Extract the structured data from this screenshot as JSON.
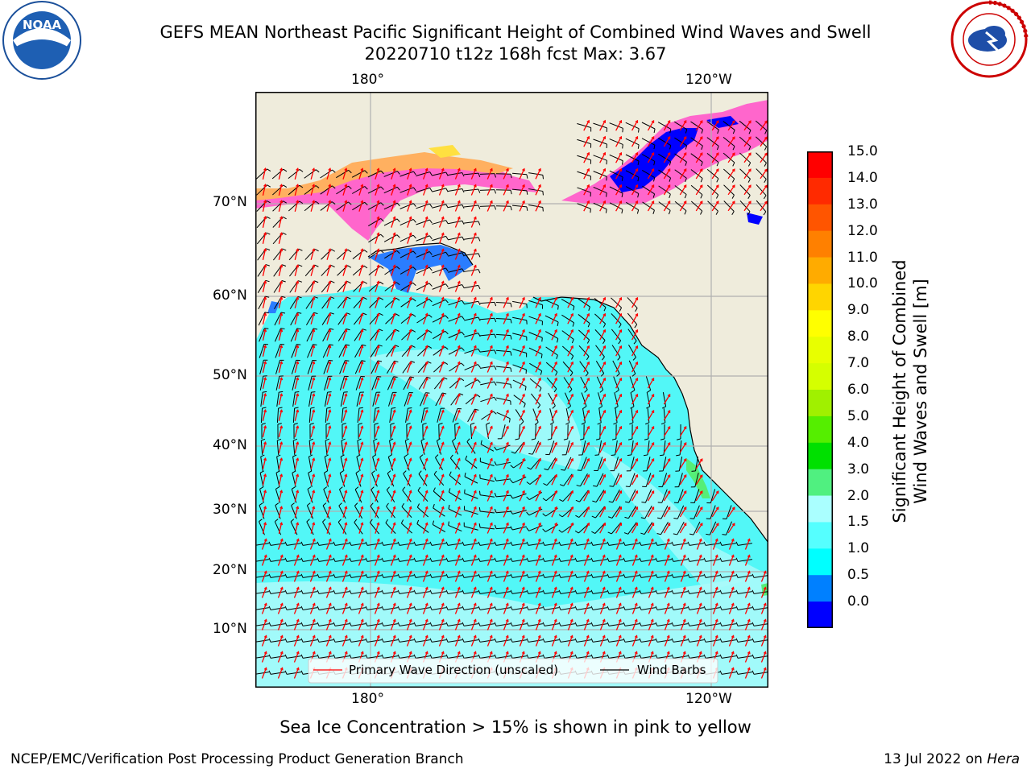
{
  "title": {
    "line1": "GEFS MEAN Northeast Pacific Significant Height of Combined Wind Waves and Swell",
    "line2": "20220710 t12z 168h fcst   Max: 3.67"
  },
  "logos": {
    "left": {
      "name": "NOAA",
      "ring_text": "NATIONAL OCEANIC AND ATMOSPHERIC ADMINISTRATION · U.S. DEPARTMENT OF COMMERCE"
    },
    "right": {
      "name": "NATIONAL WEATHER SERVICE"
    }
  },
  "map": {
    "lon_ticks_top": [
      "180°",
      "120°W"
    ],
    "lon_ticks_bottom": [
      "180°",
      "120°W"
    ],
    "lat_ticks": [
      "70°N",
      "60°N",
      "50°N",
      "40°N",
      "30°N",
      "20°N",
      "10°N"
    ],
    "colors": {
      "land": "#efecdc",
      "ocean_main": "#52f7f7",
      "ocean_light": "#aafafa",
      "ice_pink": "#ff66cc",
      "ice_orange": "#ffb060",
      "ice_yellow": "#ffe040",
      "blue": "#0055ff",
      "deep_blue": "#0000ff",
      "green": "#55ee77",
      "grid": "#b0b0b0",
      "wave_arrow": "#ff0000",
      "wind_barb": "#000000"
    },
    "legend": [
      {
        "label": "Primary Wave Direction (unscaled)",
        "color": "#ff0000"
      },
      {
        "label": "Wind Barbs",
        "color": "#000000"
      }
    ]
  },
  "colorbar": {
    "title_line1": "Significant Height of Combined",
    "title_line2": "Wind Waves and Swell [m]",
    "labels": [
      "15.0",
      "14.0",
      "13.0",
      "12.0",
      "11.0",
      "10.0",
      "9.0",
      "8.0",
      "7.0",
      "6.0",
      "5.0",
      "4.0",
      "3.0",
      "2.0",
      "1.5",
      "1.0",
      "0.5",
      "0.0"
    ],
    "colors_top_to_bottom": [
      "#ff0000",
      "#ff2a00",
      "#ff5500",
      "#ff8000",
      "#ffab00",
      "#ffd500",
      "#ffff00",
      "#e8ff00",
      "#d5ff00",
      "#a0f000",
      "#55ee00",
      "#00e000",
      "#50f080",
      "#aaffff",
      "#55ffff",
      "#00ffff",
      "#0080ff",
      "#0000ff"
    ]
  },
  "caption": "Sea Ice Concentration > 15% is shown in pink to yellow",
  "footer": {
    "left": "NCEP/EMC/Verification Post Processing Product Generation Branch",
    "right_prefix": "13 Jul 2022 on ",
    "right_host": "Hera"
  }
}
